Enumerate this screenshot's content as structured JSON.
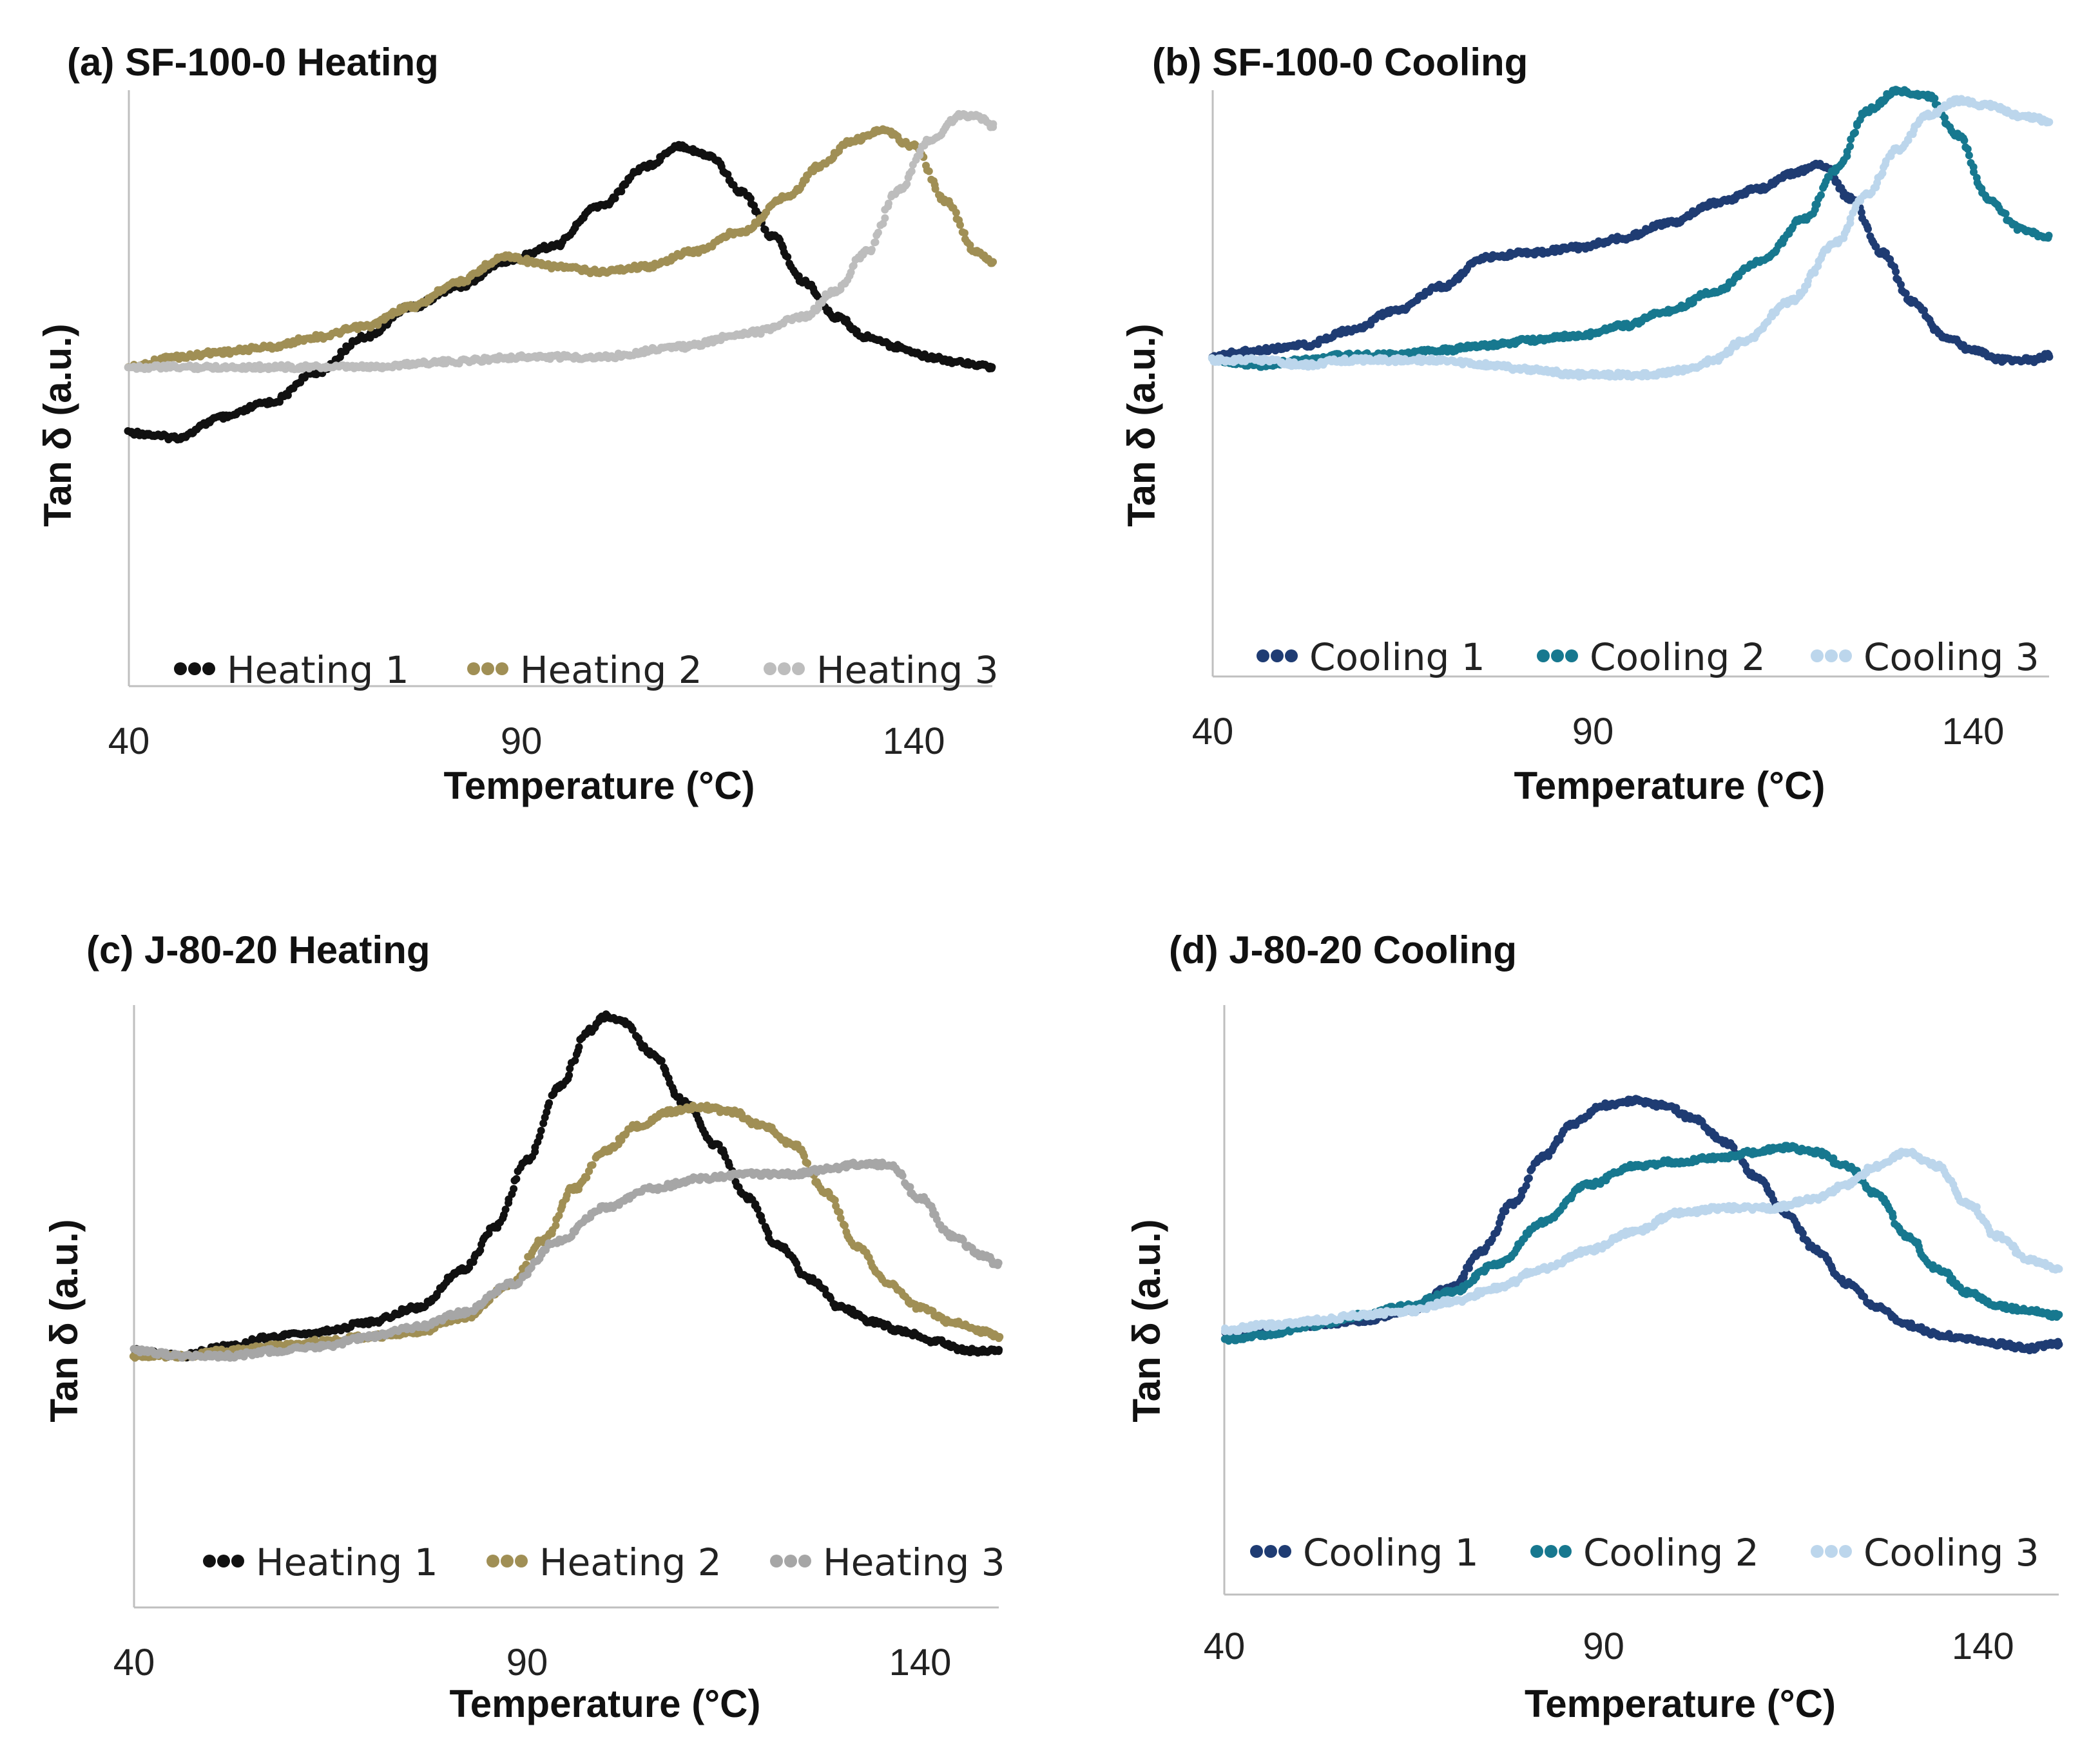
{
  "chart_data": [
    {
      "type": "scatter",
      "title": "(a) SF-100-0   Heating",
      "xlabel": "Temperature (°C)",
      "ylabel": "Tan δ (a.u.)",
      "xticks": [
        "40",
        "90",
        "140"
      ],
      "xlim": [
        40,
        150
      ],
      "ylim": [
        0,
        1
      ],
      "legend_position": "bottom",
      "series": [
        {
          "name": "Heating 1",
          "color": "#111111",
          "x": [
            40,
            46,
            52,
            58,
            64,
            70,
            76,
            82,
            88,
            94,
            100,
            106,
            110,
            114,
            118,
            122,
            126,
            130,
            134,
            138,
            142,
            146,
            150
          ],
          "y": [
            0.28,
            0.27,
            0.31,
            0.34,
            0.4,
            0.47,
            0.53,
            0.57,
            0.62,
            0.65,
            0.73,
            0.81,
            0.85,
            0.83,
            0.76,
            0.67,
            0.58,
            0.51,
            0.47,
            0.45,
            0.43,
            0.42,
            0.41
          ]
        },
        {
          "name": "Heating 2",
          "color": "#A08F55",
          "x": [
            40,
            46,
            52,
            58,
            64,
            70,
            76,
            82,
            88,
            94,
            100,
            106,
            112,
            118,
            124,
            128,
            132,
            136,
            140,
            144,
            148,
            150
          ],
          "y": [
            0.41,
            0.43,
            0.44,
            0.45,
            0.47,
            0.49,
            0.53,
            0.58,
            0.63,
            0.61,
            0.6,
            0.61,
            0.64,
            0.68,
            0.75,
            0.81,
            0.86,
            0.88,
            0.85,
            0.74,
            0.64,
            0.62
          ]
        },
        {
          "name": "Heating 3",
          "color": "#BDBDBD",
          "x": [
            40,
            50,
            60,
            70,
            80,
            90,
            100,
            110,
            120,
            126,
            130,
            134,
            138,
            142,
            146,
            148,
            150
          ],
          "y": [
            0.41,
            0.41,
            0.41,
            0.41,
            0.42,
            0.43,
            0.43,
            0.45,
            0.48,
            0.51,
            0.56,
            0.64,
            0.76,
            0.86,
            0.91,
            0.91,
            0.89
          ]
        }
      ]
    },
    {
      "type": "scatter",
      "title": "(b) SF-100-0 Cooling",
      "xlabel": "Temperature (°C)",
      "ylabel": "Tan δ (a.u.)",
      "xticks": [
        "40",
        "90",
        "140"
      ],
      "xlim": [
        40,
        150
      ],
      "ylim": [
        0,
        1
      ],
      "legend_position": "bottom",
      "series": [
        {
          "name": "Cooling 1",
          "color": "#1F3C73",
          "x": [
            40,
            46,
            52,
            58,
            64,
            70,
            76,
            82,
            88,
            94,
            100,
            106,
            112,
            116,
            120,
            124,
            128,
            132,
            136,
            140,
            144,
            148,
            150
          ],
          "y": [
            0.42,
            0.43,
            0.44,
            0.47,
            0.51,
            0.56,
            0.62,
            0.63,
            0.64,
            0.66,
            0.69,
            0.73,
            0.76,
            0.79,
            0.81,
            0.74,
            0.63,
            0.53,
            0.46,
            0.43,
            0.41,
            0.41,
            0.42
          ]
        },
        {
          "name": "Cooling 2",
          "color": "#17788F",
          "x": [
            40,
            46,
            52,
            58,
            64,
            70,
            76,
            82,
            88,
            94,
            100,
            106,
            112,
            118,
            122,
            126,
            130,
            134,
            138,
            142,
            146,
            150
          ],
          "y": [
            0.41,
            0.4,
            0.41,
            0.42,
            0.42,
            0.43,
            0.44,
            0.45,
            0.46,
            0.48,
            0.51,
            0.55,
            0.61,
            0.7,
            0.8,
            0.92,
            0.96,
            0.95,
            0.87,
            0.74,
            0.68,
            0.66
          ]
        },
        {
          "name": "Cooling 3",
          "color": "#BCD6EC",
          "x": [
            40,
            46,
            52,
            58,
            64,
            70,
            76,
            82,
            88,
            94,
            98,
            102,
            106,
            110,
            116,
            122,
            126,
            130,
            134,
            138,
            142,
            146,
            150
          ],
          "y": [
            0.41,
            0.41,
            0.4,
            0.41,
            0.41,
            0.41,
            0.4,
            0.39,
            0.38,
            0.38,
            0.38,
            0.39,
            0.41,
            0.45,
            0.53,
            0.65,
            0.75,
            0.84,
            0.91,
            0.94,
            0.93,
            0.91,
            0.9
          ]
        }
      ]
    },
    {
      "type": "scatter",
      "title": "(c) J-80-20 Heating",
      "xlabel": "Temperature (°C)",
      "ylabel": "Tan δ (a.u.)",
      "xticks": [
        "40",
        "90",
        "140"
      ],
      "xlim": [
        40,
        150
      ],
      "ylim": [
        0,
        1
      ],
      "legend_position": "bottom",
      "series": [
        {
          "name": "Heating 1",
          "color": "#111111",
          "x": [
            40,
            46,
            52,
            58,
            64,
            70,
            76,
            82,
            86,
            90,
            94,
            98,
            100,
            102,
            106,
            110,
            114,
            118,
            122,
            126,
            130,
            134,
            138,
            142,
            146,
            150
          ],
          "y": [
            0.24,
            0.23,
            0.25,
            0.27,
            0.28,
            0.3,
            0.33,
            0.41,
            0.5,
            0.64,
            0.79,
            0.91,
            0.94,
            0.93,
            0.86,
            0.76,
            0.67,
            0.56,
            0.46,
            0.39,
            0.33,
            0.3,
            0.28,
            0.26,
            0.24,
            0.24
          ]
        },
        {
          "name": "Heating 2",
          "color": "#A08F55",
          "x": [
            40,
            46,
            52,
            58,
            64,
            70,
            76,
            82,
            88,
            92,
            96,
            100,
            104,
            108,
            112,
            116,
            120,
            124,
            128,
            132,
            136,
            140,
            144,
            148,
            150
          ],
          "y": [
            0.23,
            0.23,
            0.24,
            0.25,
            0.26,
            0.27,
            0.28,
            0.31,
            0.38,
            0.47,
            0.58,
            0.66,
            0.71,
            0.74,
            0.75,
            0.74,
            0.71,
            0.67,
            0.57,
            0.46,
            0.38,
            0.33,
            0.3,
            0.28,
            0.27
          ]
        },
        {
          "name": "Heating 3",
          "color": "#A6A6A6",
          "x": [
            40,
            46,
            52,
            58,
            64,
            70,
            76,
            82,
            88,
            94,
            100,
            106,
            112,
            118,
            124,
            128,
            132,
            136,
            140,
            144,
            148,
            150
          ],
          "y": [
            0.24,
            0.23,
            0.23,
            0.24,
            0.25,
            0.27,
            0.29,
            0.32,
            0.38,
            0.47,
            0.54,
            0.58,
            0.6,
            0.61,
            0.61,
            0.62,
            0.63,
            0.63,
            0.56,
            0.48,
            0.44,
            0.42
          ]
        }
      ]
    },
    {
      "type": "scatter",
      "title": "(d) J-80-20 Cooling",
      "xlabel": "Temperature (°C)",
      "ylabel": "Tan δ (a.u.)",
      "xticks": [
        "40",
        "90",
        "140"
      ],
      "xlim": [
        40,
        150
      ],
      "ylim": [
        0,
        1
      ],
      "legend_position": "bottom",
      "series": [
        {
          "name": "Cooling 1",
          "color": "#1F3C73",
          "x": [
            40,
            46,
            52,
            58,
            64,
            70,
            74,
            78,
            82,
            86,
            90,
            94,
            98,
            102,
            106,
            110,
            114,
            118,
            122,
            126,
            130,
            134,
            138,
            142,
            146,
            150
          ],
          "y": [
            0.26,
            0.27,
            0.28,
            0.29,
            0.31,
            0.36,
            0.44,
            0.54,
            0.64,
            0.71,
            0.75,
            0.76,
            0.75,
            0.72,
            0.67,
            0.6,
            0.52,
            0.44,
            0.37,
            0.32,
            0.28,
            0.26,
            0.25,
            0.24,
            0.23,
            0.24
          ]
        },
        {
          "name": "Cooling 2",
          "color": "#17788F",
          "x": [
            40,
            46,
            52,
            58,
            64,
            70,
            76,
            82,
            88,
            94,
            100,
            106,
            110,
            114,
            118,
            122,
            126,
            130,
            134,
            138,
            142,
            146,
            150
          ],
          "y": [
            0.25,
            0.26,
            0.28,
            0.3,
            0.32,
            0.35,
            0.41,
            0.5,
            0.58,
            0.62,
            0.63,
            0.64,
            0.65,
            0.66,
            0.65,
            0.62,
            0.56,
            0.47,
            0.4,
            0.35,
            0.32,
            0.31,
            0.3
          ]
        },
        {
          "name": "Cooling 3",
          "color": "#BCD6EC",
          "x": [
            40,
            46,
            52,
            58,
            64,
            70,
            76,
            82,
            88,
            94,
            100,
            106,
            112,
            118,
            122,
            126,
            130,
            134,
            138,
            142,
            146,
            150
          ],
          "y": [
            0.27,
            0.28,
            0.29,
            0.3,
            0.31,
            0.33,
            0.36,
            0.4,
            0.44,
            0.48,
            0.52,
            0.53,
            0.53,
            0.55,
            0.58,
            0.62,
            0.65,
            0.62,
            0.54,
            0.47,
            0.42,
            0.4
          ]
        }
      ]
    }
  ]
}
